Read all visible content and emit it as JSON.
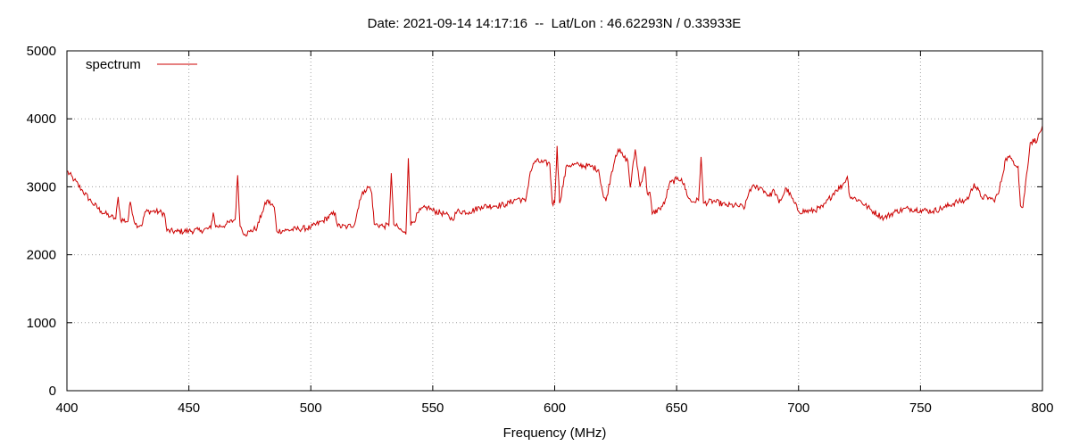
{
  "chart_data": {
    "type": "line",
    "title": "Date: 2021-09-14 14:17:16  --  Lat/Lon : 46.62293N / 0.33933E",
    "xlabel": "Frequency (MHz)",
    "ylabel": "",
    "xlim": [
      400,
      800
    ],
    "ylim": [
      0,
      5000
    ],
    "xticks": [
      400,
      450,
      500,
      550,
      600,
      650,
      700,
      750,
      800
    ],
    "yticks": [
      0,
      1000,
      2000,
      3000,
      4000,
      5000
    ],
    "grid": true,
    "legend_position": "top-left",
    "line_color": "#cc0000",
    "series": [
      {
        "name": "spectrum",
        "x": [
          400,
          403,
          406,
          410,
          414,
          418,
          420,
          421,
          422,
          425,
          426,
          428,
          430,
          431,
          432,
          435,
          438,
          440,
          441,
          445,
          450,
          455,
          459,
          460,
          461,
          465,
          469,
          470,
          471,
          473,
          475,
          478,
          480,
          482,
          485,
          486,
          490,
          495,
          500,
          505,
          510,
          511,
          515,
          518,
          520,
          522,
          524,
          525,
          526,
          530,
          532,
          533,
          534,
          536,
          538,
          539,
          540,
          541,
          545,
          548,
          550,
          555,
          558,
          560,
          565,
          570,
          575,
          580,
          585,
          588,
          590,
          592,
          595,
          598,
          599,
          600,
          601,
          602,
          605,
          610,
          615,
          618,
          620,
          621,
          623,
          625,
          626,
          628,
          630,
          631,
          633,
          635,
          637,
          638,
          639,
          640,
          643,
          645,
          647,
          650,
          652,
          655,
          656,
          659,
          660,
          661,
          665,
          670,
          675,
          678,
          680,
          682,
          685,
          688,
          690,
          692,
          695,
          698,
          700,
          705,
          710,
          715,
          718,
          720,
          721,
          725,
          730,
          735,
          740,
          745,
          750,
          755,
          760,
          765,
          768,
          770,
          772,
          775,
          778,
          780,
          782,
          785,
          787,
          788,
          790,
          791,
          792,
          795,
          798,
          800
        ],
        "y": [
          3230,
          3100,
          2960,
          2780,
          2640,
          2560,
          2530,
          2850,
          2520,
          2490,
          2780,
          2450,
          2430,
          2460,
          2630,
          2640,
          2630,
          2600,
          2350,
          2340,
          2350,
          2360,
          2390,
          2620,
          2410,
          2440,
          2520,
          3170,
          2420,
          2300,
          2340,
          2400,
          2620,
          2800,
          2700,
          2350,
          2360,
          2380,
          2400,
          2500,
          2620,
          2420,
          2410,
          2450,
          2800,
          2950,
          3000,
          2900,
          2450,
          2420,
          2430,
          3200,
          2450,
          2390,
          2330,
          2300,
          3420,
          2430,
          2660,
          2700,
          2650,
          2600,
          2520,
          2640,
          2630,
          2710,
          2720,
          2740,
          2830,
          2780,
          3220,
          3380,
          3360,
          3340,
          2760,
          2760,
          3600,
          2760,
          3320,
          3320,
          3300,
          3250,
          2850,
          2790,
          3150,
          3460,
          3550,
          3450,
          3380,
          2990,
          3550,
          3000,
          3300,
          2900,
          2920,
          2600,
          2680,
          2750,
          3040,
          3110,
          3120,
          2830,
          2780,
          2800,
          3440,
          2760,
          2790,
          2730,
          2720,
          2700,
          2960,
          3000,
          2980,
          2860,
          2950,
          2760,
          2980,
          2780,
          2640,
          2640,
          2700,
          2940,
          3020,
          3150,
          2860,
          2800,
          2650,
          2540,
          2640,
          2680,
          2660,
          2640,
          2700,
          2780,
          2790,
          2860,
          3050,
          2850,
          2840,
          2800,
          2900,
          3420,
          3420,
          3380,
          3300,
          2720,
          2700,
          3650,
          3700,
          3900
        ]
      }
    ]
  }
}
